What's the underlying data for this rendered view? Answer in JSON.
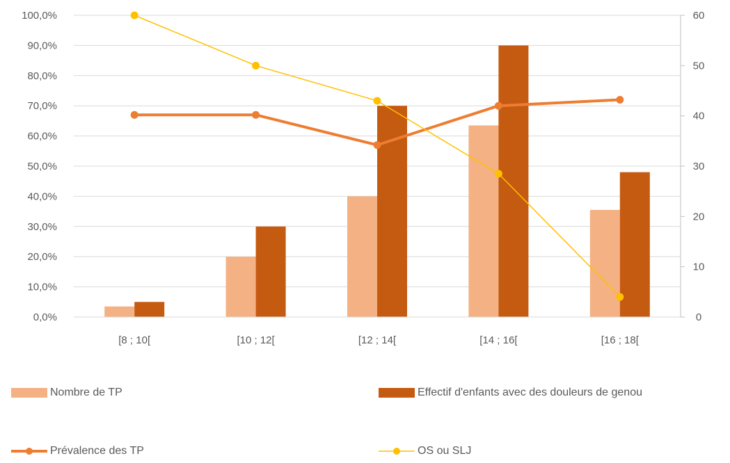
{
  "chart_data": {
    "type": "bar",
    "categories": [
      "[8 ; 10[",
      "[10 ; 12[",
      "[12 ; 14[",
      "[14 ; 16[",
      "[16 ; 18["
    ],
    "y_left": {
      "ylim": [
        0,
        100
      ],
      "ticks": [
        "0,0%",
        "10,0%",
        "20,0%",
        "30,0%",
        "40,0%",
        "50,0%",
        "60,0%",
        "70,0%",
        "80,0%",
        "90,0%",
        "100,0%"
      ]
    },
    "y_right": {
      "ylim": [
        0,
        60
      ],
      "ticks": [
        "0",
        "10",
        "20",
        "30",
        "40",
        "50",
        "60"
      ]
    },
    "grid": true,
    "legend_position": "bottom",
    "series": [
      {
        "name": "Nombre de TP",
        "kind": "bar",
        "axis": "left",
        "color": "#F4B183",
        "values": [
          3.5,
          20,
          40,
          63.5,
          35.5
        ]
      },
      {
        "name": "Effectif d'enfants avec des douleurs de genou",
        "kind": "bar",
        "axis": "left",
        "color": "#C55A11",
        "values": [
          5,
          30,
          70,
          90,
          48
        ]
      },
      {
        "name": "Prévalence des TP",
        "kind": "line",
        "axis": "left",
        "color": "#ED7D31",
        "values": [
          67,
          67,
          57,
          70,
          72
        ]
      },
      {
        "name": "OS ou SLJ",
        "kind": "line",
        "axis": "right",
        "color": "#FFC000",
        "values": [
          60,
          50,
          43,
          28.5,
          4
        ]
      }
    ]
  }
}
